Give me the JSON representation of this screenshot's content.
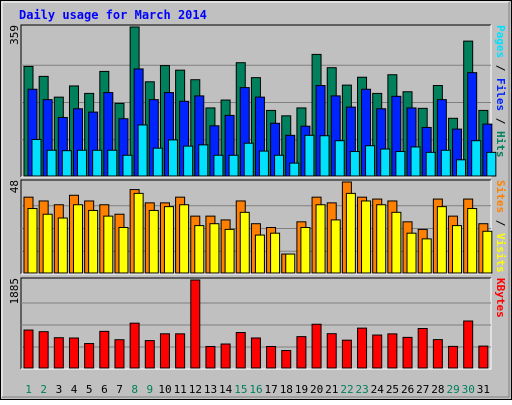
{
  "chart_data": {
    "type": "bar",
    "title": "Daily usage for March 2014",
    "categories": [
      "1",
      "2",
      "3",
      "4",
      "5",
      "6",
      "7",
      "8",
      "9",
      "10",
      "11",
      "12",
      "13",
      "14",
      "15",
      "16",
      "17",
      "18",
      "19",
      "20",
      "21",
      "22",
      "23",
      "24",
      "25",
      "26",
      "27",
      "28",
      "29",
      "30",
      "31"
    ],
    "weekend_days": [
      "1",
      "2",
      "8",
      "9",
      "15",
      "16",
      "22",
      "23",
      "29",
      "30"
    ],
    "panels": [
      {
        "id": "hits",
        "ymax_label": "359",
        "ylim": [
          0,
          359
        ],
        "series": [
          {
            "name": "Hits",
            "color": "#00805c",
            "values": [
              264,
              240,
              190,
              217,
              199,
              252,
              175,
              359,
              227,
              266,
              255,
              232,
              164,
              183,
              273,
              237,
              158,
              145,
              164,
              293,
              261,
              219,
              238,
              199,
              244,
              203,
              163,
              218,
              139,
              325,
              158
            ]
          },
          {
            "name": "Files",
            "color": "#0024ff",
            "values": [
              209,
              184,
              141,
              162,
              154,
              201,
              138,
              258,
              184,
              201,
              180,
              193,
              121,
              146,
              213,
              190,
              127,
              98,
              120,
              218,
              193,
              166,
              209,
              162,
              192,
              164,
              117,
              184,
              113,
              249,
              125
            ]
          },
          {
            "name": "Pages",
            "color": "#00e0ff",
            "values": [
              88,
              62,
              61,
              62,
              62,
              62,
              50,
              123,
              67,
              87,
              72,
              75,
              50,
              50,
              79,
              60,
              50,
              31,
              98,
              97,
              85,
              59,
              73,
              65,
              59,
              70,
              57,
              62,
              39,
              85,
              57
            ]
          }
        ]
      },
      {
        "id": "visits",
        "ymax_label": "48",
        "ylim": [
          0,
          48
        ],
        "series": [
          {
            "name": "Visits",
            "color": "#ff8000",
            "values": [
              40,
              38,
              36,
              41,
              38,
              36,
              31,
              44,
              37,
              37,
              40,
              30,
              30,
              28,
              38,
              26,
              24,
              10,
              27,
              40,
              37,
              48,
              40,
              39,
              38,
              27,
              23,
              39,
              30,
              39,
              26
            ]
          },
          {
            "name": "Sites",
            "color": "#ffff00",
            "values": [
              34,
              31,
              29,
              36,
              33,
              30,
              24,
              42,
              33,
              35,
              36,
              25,
              26,
              23,
              32,
              20,
              21,
              10,
              24,
              36,
              28,
              42,
              38,
              36,
              32,
              21,
              18,
              35,
              25,
              34,
              22
            ]
          }
        ]
      },
      {
        "id": "kbytes",
        "ymax_label": "1885",
        "ylim": [
          0,
          1885
        ],
        "series": [
          {
            "name": "KBytes",
            "color": "#ff0000",
            "values": [
              813,
              778,
              649,
              642,
              524,
              785,
              606,
              960,
              587,
              733,
              732,
              1885,
              461,
              514,
              760,
              643,
              461,
              374,
              672,
              937,
              735,
              596,
              854,
              706,
              731,
              656,
              846,
              608,
              463,
              1007,
              469
            ]
          }
        ]
      }
    ],
    "right_labels": [
      {
        "panel": "hits",
        "parts": [
          {
            "text": "Pages",
            "color": "#00e0ff"
          },
          {
            "text": " / ",
            "color": "#000000"
          },
          {
            "text": "Files",
            "color": "#0024ff"
          },
          {
            "text": " / ",
            "color": "#000000"
          },
          {
            "text": "Hits",
            "color": "#00805c"
          }
        ]
      },
      {
        "panel": "visits",
        "parts": [
          {
            "text": "Sites",
            "color": "#ff8000"
          },
          {
            "text": " / ",
            "color": "#000000"
          },
          {
            "text": "Visits",
            "color": "#ffff00"
          }
        ]
      },
      {
        "panel": "kbytes",
        "parts": [
          {
            "text": "KBytes",
            "color": "#ff0000"
          }
        ]
      }
    ],
    "colors": {
      "background": "#c0c0c0",
      "title": "#0000ff",
      "weekday_tick": "#000000",
      "weekend_tick": "#00805c",
      "gridline": "#808080"
    }
  }
}
